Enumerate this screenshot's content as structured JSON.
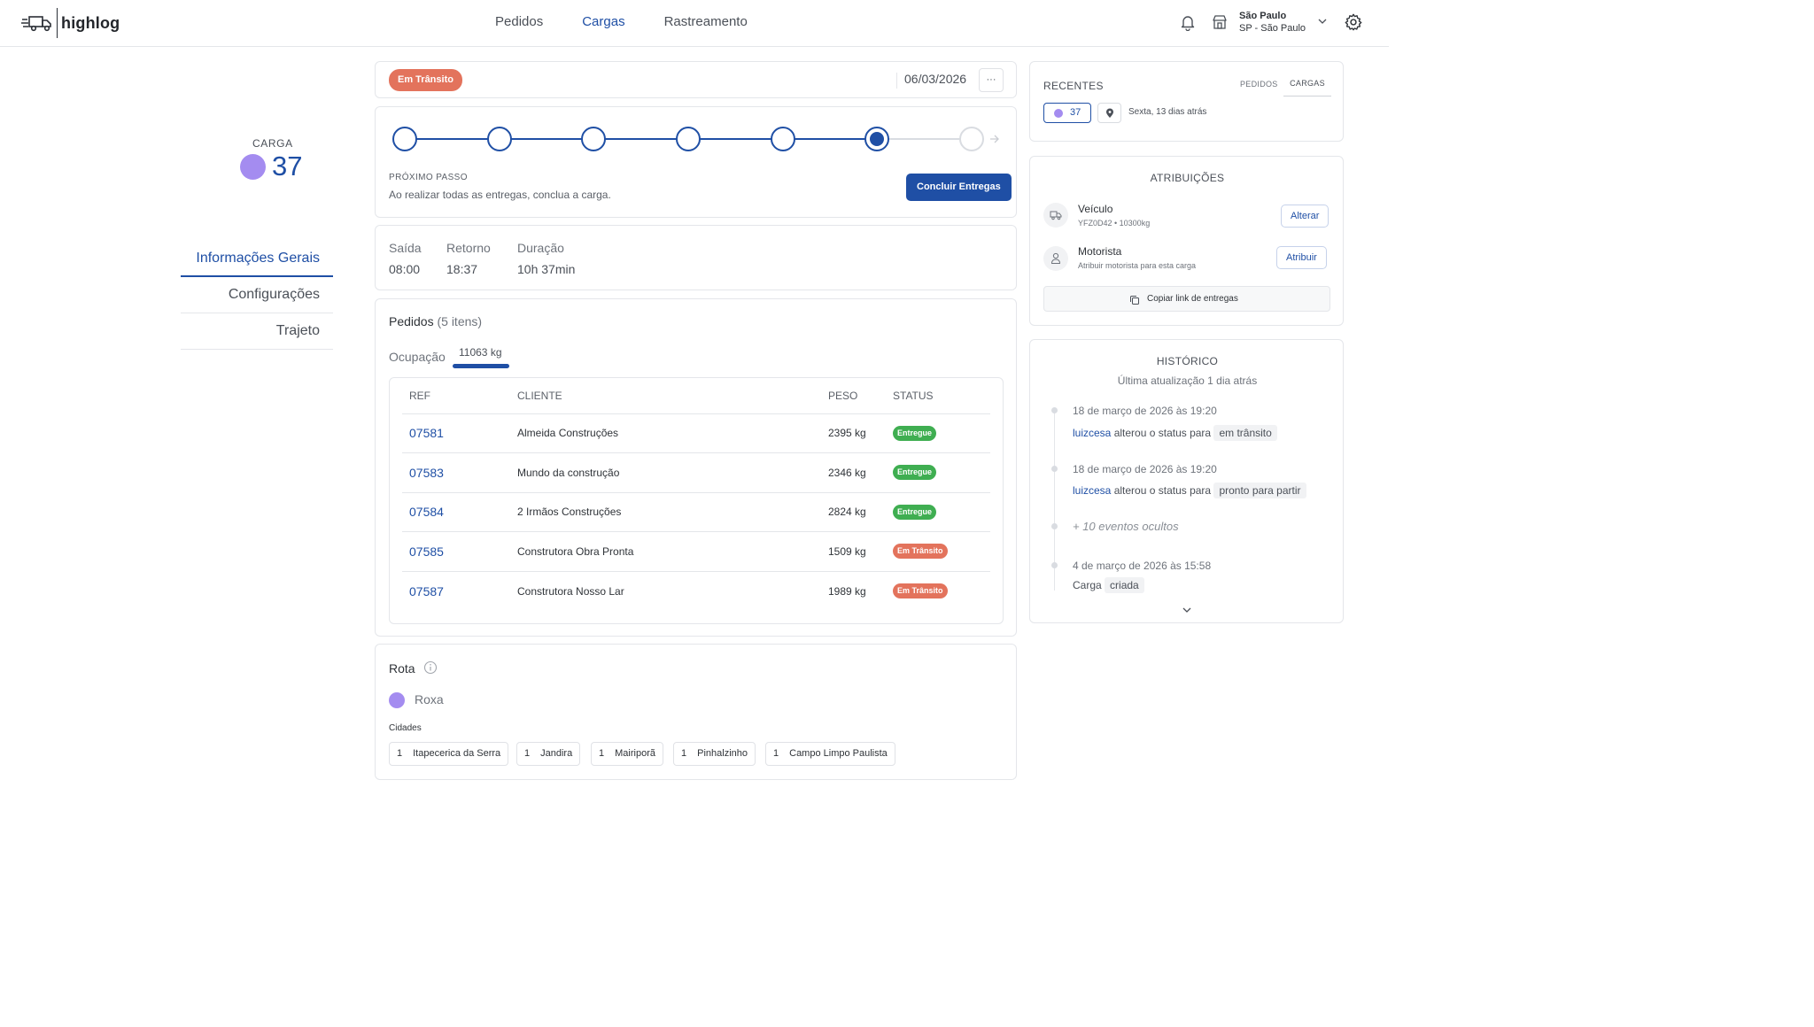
{
  "app": {
    "logo_text": "highlog"
  },
  "nav": {
    "items": [
      "Pedidos",
      "Cargas",
      "Rastreamento"
    ],
    "active": "Cargas"
  },
  "location": {
    "city": "São Paulo",
    "region": "SP - São Paulo"
  },
  "carga": {
    "label": "CARGA",
    "number": "37",
    "color": "#a48cf0"
  },
  "side_menu": [
    "Informações Gerais",
    "Configurações",
    "Trajeto"
  ],
  "status_card": {
    "status": "Em Trânsito",
    "date": "06/03/2026",
    "more": "···"
  },
  "progress": {
    "total_steps": 7,
    "current_step": 6,
    "next_step_label": "PRÓXIMO PASSO",
    "next_step_text": "Ao realizar todas as entregas, conclua a carga.",
    "action_label": "Concluir Entregas"
  },
  "times": {
    "saida_label": "Saída",
    "saida": "08:00",
    "retorno_label": "Retorno",
    "retorno": "18:37",
    "duracao_label": "Duração",
    "duracao": "10h 37min"
  },
  "pedidos": {
    "title": "Pedidos",
    "count_text": "(5 itens)",
    "ocupacao_label": "Ocupação",
    "ocupacao_value": "11063 kg",
    "columns": [
      "REF",
      "CLIENTE",
      "PESO",
      "STATUS"
    ],
    "rows": [
      {
        "ref": "07581",
        "cliente": "Almeida Construções",
        "peso": "2395 kg",
        "status": "Entregue"
      },
      {
        "ref": "07583",
        "cliente": "Mundo da construção",
        "peso": "2346 kg",
        "status": "Entregue"
      },
      {
        "ref": "07584",
        "cliente": "2 Irmãos Construções",
        "peso": "2824 kg",
        "status": "Entregue"
      },
      {
        "ref": "07585",
        "cliente": "Construtora Obra Pronta",
        "peso": "1509 kg",
        "status": "Em Trânsito"
      },
      {
        "ref": "07587",
        "cliente": "Construtora Nosso Lar",
        "peso": "1989 kg",
        "status": "Em Trânsito"
      }
    ]
  },
  "rota": {
    "title": "Rota",
    "name": "Roxa",
    "color": "#a48cf0",
    "cidades_label": "Cidades",
    "cidades": [
      {
        "n": "1",
        "name": "Itapecerica da Serra"
      },
      {
        "n": "1",
        "name": "Jandira"
      },
      {
        "n": "1",
        "name": "Mairiporã"
      },
      {
        "n": "1",
        "name": "Pinhalzinho"
      },
      {
        "n": "1",
        "name": "Campo Limpo Paulista"
      }
    ]
  },
  "recentes": {
    "title": "RECENTES",
    "tabs": [
      "PEDIDOS",
      "CARGAS"
    ],
    "active_tab": "CARGAS",
    "item_number": "37",
    "item_text": "Sexta, 13 dias atrás"
  },
  "atribuicoes": {
    "title": "ATRIBUIÇÕES",
    "veiculo_label": "Veículo",
    "veiculo_detail": "YFZ0D42 • 10300kg",
    "veiculo_action": "Alterar",
    "motorista_label": "Motorista",
    "motorista_detail": "Atribuir motorista para esta carga",
    "motorista_action": "Atribuir",
    "copy_label": "Copiar link de entregas"
  },
  "historico": {
    "title": "HISTÓRICO",
    "subtitle": "Última atualização 1 dia atrás",
    "events": [
      {
        "date": "18 de março de 2026 às 19:20",
        "user": "luizcesa",
        "text": "alterou o status para",
        "tag": "em trânsito"
      },
      {
        "date": "18 de março de 2026 às 19:20",
        "user": "luizcesa",
        "text": "alterou o status para",
        "tag": "pronto para partir"
      }
    ],
    "hidden_text": "+ 10 eventos ocultos",
    "last": {
      "date": "4 de março de 2026 às 15:58",
      "text": "Carga",
      "tag": "criada"
    }
  }
}
